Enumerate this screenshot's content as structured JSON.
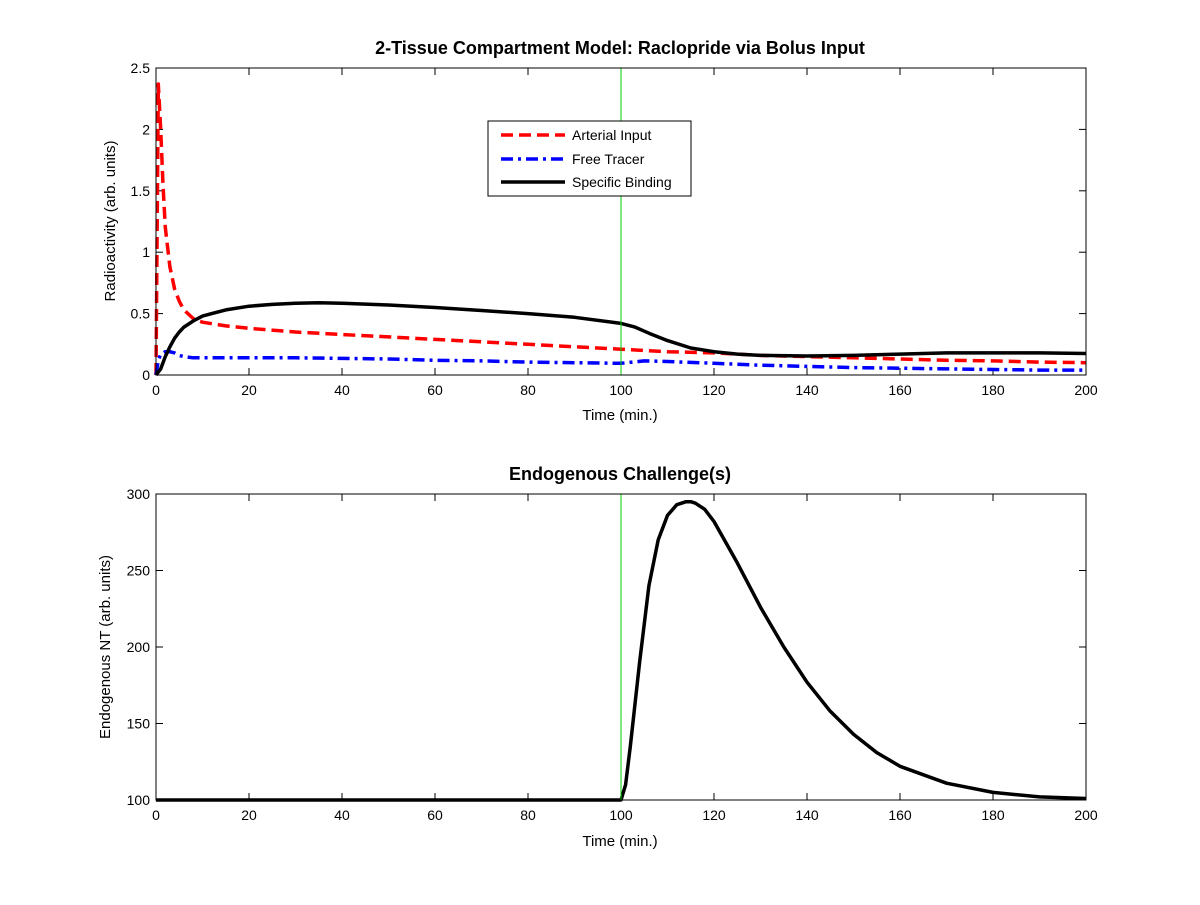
{
  "colors": {
    "arterial": "#ff0000",
    "free": "#0000ff",
    "specific": "#000000",
    "marker": "#00cc00",
    "axes": "#000000"
  },
  "chart_data": [
    {
      "type": "line",
      "title": "2-Tissue Compartment Model: Raclopride via Bolus Input",
      "xlabel": "Time (min.)",
      "ylabel": "Radioactivity (arb. units)",
      "xlim": [
        0,
        200
      ],
      "ylim": [
        0,
        2.5
      ],
      "xticks": [
        "0",
        "20",
        "40",
        "60",
        "80",
        "100",
        "120",
        "140",
        "160",
        "180",
        "200"
      ],
      "yticks": [
        "0",
        "0.5",
        "1",
        "1.5",
        "2",
        "2.5"
      ],
      "grid": false,
      "legend_position": "top-center",
      "marker_line_x": 100,
      "series": [
        {
          "name": "Arterial Input",
          "style": "dashed",
          "x": [
            0,
            0.5,
            1,
            1.5,
            2,
            3,
            4,
            5,
            6,
            8,
            10,
            15,
            20,
            30,
            40,
            50,
            60,
            70,
            80,
            90,
            100,
            110,
            120,
            130,
            140,
            150,
            160,
            170,
            180,
            190,
            200
          ],
          "y": [
            0,
            2.37,
            2.0,
            1.55,
            1.2,
            0.88,
            0.7,
            0.6,
            0.53,
            0.46,
            0.43,
            0.4,
            0.38,
            0.35,
            0.33,
            0.31,
            0.29,
            0.27,
            0.25,
            0.23,
            0.21,
            0.19,
            0.18,
            0.16,
            0.15,
            0.14,
            0.13,
            0.12,
            0.115,
            0.105,
            0.1
          ]
        },
        {
          "name": "Free Tracer",
          "style": "dashdot",
          "x": [
            0,
            0.5,
            1,
            2,
            3,
            4,
            5,
            6,
            8,
            10,
            20,
            30,
            40,
            50,
            60,
            70,
            80,
            90,
            100,
            105,
            110,
            120,
            130,
            140,
            150,
            160,
            170,
            180,
            190,
            200
          ],
          "y": [
            0,
            0.12,
            0.17,
            0.19,
            0.19,
            0.18,
            0.16,
            0.15,
            0.14,
            0.14,
            0.14,
            0.14,
            0.135,
            0.13,
            0.12,
            0.115,
            0.105,
            0.1,
            0.095,
            0.115,
            0.11,
            0.095,
            0.08,
            0.07,
            0.06,
            0.055,
            0.05,
            0.045,
            0.04,
            0.04
          ]
        },
        {
          "name": "Specific Binding",
          "style": "solid",
          "x": [
            0,
            1,
            2,
            3,
            4,
            5,
            6,
            8,
            10,
            12,
            15,
            20,
            25,
            30,
            35,
            40,
            50,
            60,
            70,
            80,
            90,
            100,
            103,
            106,
            110,
            115,
            120,
            125,
            130,
            140,
            150,
            160,
            170,
            180,
            190,
            200
          ],
          "y": [
            0,
            0.05,
            0.15,
            0.23,
            0.3,
            0.35,
            0.39,
            0.44,
            0.48,
            0.5,
            0.53,
            0.56,
            0.575,
            0.585,
            0.588,
            0.585,
            0.57,
            0.55,
            0.525,
            0.5,
            0.47,
            0.42,
            0.39,
            0.34,
            0.28,
            0.22,
            0.19,
            0.17,
            0.16,
            0.155,
            0.16,
            0.17,
            0.18,
            0.18,
            0.18,
            0.175
          ]
        }
      ]
    },
    {
      "type": "line",
      "title": "Endogenous Challenge(s)",
      "xlabel": "Time (min.)",
      "ylabel": "Endogenous NT (arb. units)",
      "xlim": [
        0,
        200
      ],
      "ylim": [
        100,
        300
      ],
      "xticks": [
        "0",
        "20",
        "40",
        "60",
        "80",
        "100",
        "120",
        "140",
        "160",
        "180",
        "200"
      ],
      "yticks": [
        "100",
        "150",
        "200",
        "250",
        "300"
      ],
      "grid": false,
      "marker_line_x": 100,
      "series": [
        {
          "name": "",
          "style": "solid",
          "x": [
            0,
            100,
            101,
            102,
            104,
            106,
            108,
            110,
            112,
            114,
            115,
            116,
            118,
            120,
            125,
            130,
            135,
            140,
            145,
            150,
            155,
            160,
            170,
            180,
            190,
            200
          ],
          "y": [
            100,
            100,
            110,
            135,
            190,
            240,
            270,
            286,
            293,
            295,
            295,
            294,
            290,
            282,
            255,
            226,
            200,
            177,
            158,
            143,
            131,
            122,
            111,
            105,
            102,
            101
          ]
        }
      ]
    }
  ]
}
